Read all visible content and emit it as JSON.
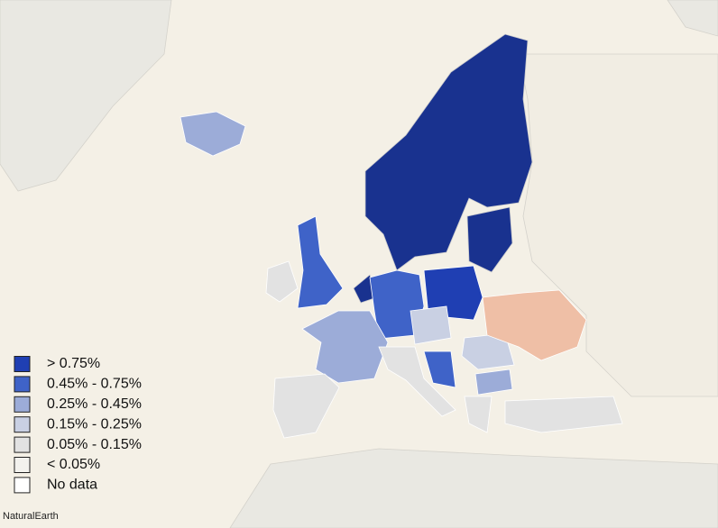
{
  "legend": {
    "items": [
      {
        "label": "> 0.75%",
        "color": "#1f3fb3"
      },
      {
        "label": "0.45% - 0.75%",
        "color": "#3f63c8"
      },
      {
        "label": "0.25% - 0.45%",
        "color": "#9cacd8"
      },
      {
        "label": "0.15% - 0.25%",
        "color": "#c9d0e3"
      },
      {
        "label": "0.05% - 0.15%",
        "color": "#e2e2e2"
      },
      {
        "label": "< 0.05%",
        "color": "#f3f2ee"
      },
      {
        "label": "No data",
        "color": "#ffffff"
      }
    ]
  },
  "attribution": "NaturalEarth"
}
